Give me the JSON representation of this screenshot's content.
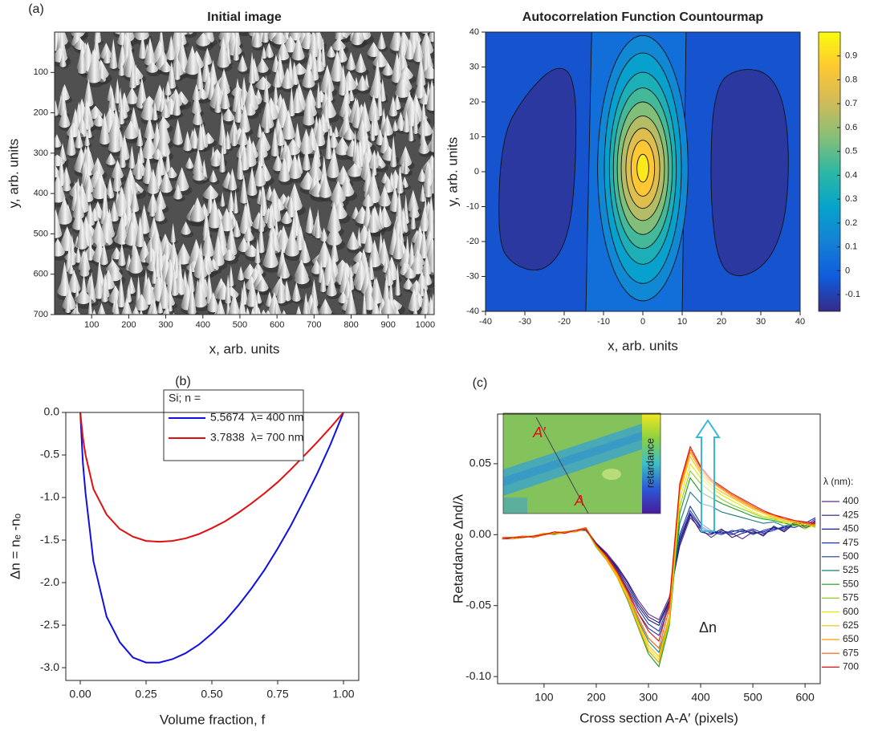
{
  "chart_data": [
    {
      "type": "image",
      "panel_label": "(a)",
      "title": "Initial image",
      "xlabel": "x, arb. units",
      "ylabel": "y, arb. units",
      "xlim": [
        0,
        1024
      ],
      "ylim": [
        700,
        0
      ],
      "xticks": [
        100,
        200,
        300,
        400,
        500,
        600,
        700,
        800,
        900,
        1000
      ],
      "yticks": [
        100,
        200,
        300,
        400,
        500,
        600,
        700
      ]
    },
    {
      "type": "contour",
      "title": "Autocorrelation Function Countourmap",
      "xlabel": "x, arb. units",
      "ylabel": "y, arb. units",
      "xlim": [
        -40,
        40
      ],
      "ylim": [
        -40,
        40
      ],
      "xticks": [
        -40,
        -30,
        -20,
        -10,
        0,
        10,
        20,
        30,
        40
      ],
      "yticks": [
        -40,
        -30,
        -20,
        -10,
        0,
        10,
        20,
        30,
        40
      ],
      "colorbar": {
        "lim": [
          -0.17,
          1.0
        ],
        "ticks": [
          -0.1,
          0,
          0.1,
          0.2,
          0.3,
          0.4,
          0.5,
          0.6,
          0.7,
          0.8,
          0.9
        ]
      },
      "colormap": [
        "#352a87",
        "#0f5cdd",
        "#1481d6",
        "#06a4ca",
        "#2eb7a4",
        "#87bf77",
        "#d1bb59",
        "#fec832",
        "#f9fb0e"
      ]
    },
    {
      "type": "line",
      "panel_label": "(b)",
      "xlabel": "Volume fraction, f",
      "ylabel": "Δn = nₑ -nₒ",
      "xlim": [
        -0.055,
        1.058
      ],
      "ylim": [
        -3.15,
        0
      ],
      "xticks": [
        {
          "value": 0,
          "label": "0.00"
        },
        {
          "value": 0.25,
          "label": "0.25"
        },
        {
          "value": 0.5,
          "label": "0.50"
        },
        {
          "value": 0.75,
          "label": "0.75"
        },
        {
          "value": 1,
          "label": "1.00"
        }
      ],
      "yticks": [
        {
          "value": 0,
          "label": "0.0"
        },
        {
          "value": -0.5,
          "label": "-0.5"
        },
        {
          "value": -1,
          "label": "-1.0"
        },
        {
          "value": -1.5,
          "label": "-1.5"
        },
        {
          "value": -2,
          "label": "-2.0"
        },
        {
          "value": -2.5,
          "label": "-2.5"
        },
        {
          "value": -3,
          "label": "-3.0"
        }
      ],
      "legend": "upper center",
      "legend_title": "Si; n =",
      "x": [
        0,
        0.01,
        0.02,
        0.05,
        0.1,
        0.15,
        0.2,
        0.25,
        0.3,
        0.35,
        0.4,
        0.45,
        0.5,
        0.55,
        0.6,
        0.65,
        0.7,
        0.75,
        0.8,
        0.85,
        0.9,
        0.95,
        1
      ],
      "series": [
        {
          "name": "5.5674  λ= 400 nm",
          "color": "#1010e0",
          "values": [
            0,
            -0.6,
            -0.95,
            -1.75,
            -2.4,
            -2.7,
            -2.88,
            -2.94,
            -2.94,
            -2.9,
            -2.83,
            -2.73,
            -2.6,
            -2.45,
            -2.27,
            -2.07,
            -1.85,
            -1.6,
            -1.33,
            -1.03,
            -0.72,
            -0.38,
            0
          ]
        },
        {
          "name": "3.7838  λ= 700 nm",
          "color": "#e01010",
          "values": [
            0,
            -0.3,
            -0.5,
            -0.9,
            -1.2,
            -1.37,
            -1.46,
            -1.51,
            -1.52,
            -1.51,
            -1.48,
            -1.43,
            -1.36,
            -1.28,
            -1.18,
            -1.07,
            -0.95,
            -0.82,
            -0.67,
            -0.51,
            -0.35,
            -0.18,
            0
          ]
        }
      ]
    },
    {
      "type": "line",
      "panel_label": "(c)",
      "xlabel": "Cross section A-A′ (pixels)",
      "ylabel": "Retardance Δnd/λ",
      "xlim": [
        11,
        629
      ],
      "ylim": [
        -0.105,
        0.085
      ],
      "xticks": [
        100,
        200,
        300,
        400,
        500,
        600
      ],
      "yticks": [
        {
          "value": 0.05,
          "label": "0.05"
        },
        {
          "value": 0,
          "label": "0.00"
        },
        {
          "value": -0.05,
          "label": "-0.05"
        },
        {
          "value": -0.1,
          "label": "-0.10"
        }
      ],
      "legend": "right",
      "legend_title": "λ (nm):",
      "annotation": "Δn",
      "inset": {
        "labels": [
          "A′",
          "A"
        ],
        "colorbar_label": "retardance"
      },
      "x": [
        20,
        40,
        60,
        80,
        100,
        120,
        140,
        160,
        180,
        200,
        220,
        240,
        260,
        280,
        300,
        320,
        340,
        360,
        380,
        400,
        420,
        440,
        460,
        480,
        500,
        520,
        540,
        560,
        580,
        600,
        620
      ],
      "series": [
        {
          "name": "400",
          "color": "#5a2d91",
          "values": [
            -0.002,
            -0.003,
            -0.001,
            -0.002,
            0.0,
            0.001,
            0.002,
            0.002,
            0.004,
            -0.006,
            -0.013,
            -0.022,
            -0.033,
            -0.046,
            -0.056,
            -0.06,
            -0.044,
            -0.008,
            0.012,
            0.004,
            -0.002,
            0.003,
            0.001,
            -0.003,
            0.002,
            0.0,
            0.005,
            0.003,
            0.009,
            0.006,
            0.011
          ]
        },
        {
          "name": "425",
          "color": "#2a1a70",
          "values": [
            -0.003,
            -0.002,
            -0.002,
            -0.001,
            0.001,
            0.0,
            0.002,
            0.003,
            0.003,
            -0.007,
            -0.014,
            -0.023,
            -0.034,
            -0.048,
            -0.058,
            -0.062,
            -0.046,
            -0.006,
            0.014,
            0.002,
            0.0,
            0.004,
            -0.002,
            0.001,
            0.003,
            -0.001,
            0.006,
            0.002,
            0.008,
            0.004,
            0.01
          ]
        },
        {
          "name": "450",
          "color": "#1c1c8c",
          "values": [
            -0.002,
            -0.002,
            -0.001,
            -0.002,
            0.0,
            0.001,
            0.001,
            0.003,
            0.004,
            -0.006,
            -0.014,
            -0.024,
            -0.036,
            -0.05,
            -0.06,
            -0.064,
            -0.047,
            -0.004,
            0.015,
            0.005,
            0.001,
            0.002,
            0.0,
            0.003,
            0.001,
            0.002,
            0.004,
            0.005,
            0.007,
            0.009,
            0.008
          ]
        },
        {
          "name": "475",
          "color": "#1f35b5",
          "values": [
            -0.003,
            -0.003,
            -0.002,
            -0.001,
            0.0,
            0.001,
            0.002,
            0.002,
            0.004,
            -0.007,
            -0.015,
            -0.025,
            -0.038,
            -0.052,
            -0.063,
            -0.068,
            -0.048,
            -0.002,
            0.017,
            0.006,
            0.002,
            0.0,
            0.003,
            0.002,
            0.004,
            0.001,
            0.003,
            0.006,
            0.005,
            0.008,
            0.012
          ]
        },
        {
          "name": "500",
          "color": "#1a3aa0",
          "values": [
            -0.002,
            -0.002,
            -0.002,
            -0.001,
            0.001,
            0.0,
            0.002,
            0.003,
            0.004,
            -0.008,
            -0.016,
            -0.026,
            -0.04,
            -0.055,
            -0.066,
            -0.071,
            -0.05,
            0.0,
            0.02,
            0.008,
            0.003,
            0.001,
            0.002,
            0.004,
            0.0,
            0.003,
            0.005,
            0.004,
            0.007,
            0.006,
            0.009
          ]
        },
        {
          "name": "525",
          "color": "#1a7a7a",
          "values": [
            -0.002,
            -0.003,
            -0.001,
            -0.002,
            0.0,
            0.002,
            0.001,
            0.003,
            0.005,
            -0.008,
            -0.017,
            -0.028,
            -0.043,
            -0.06,
            -0.075,
            -0.083,
            -0.058,
            0.008,
            0.03,
            0.022,
            0.02,
            0.016,
            0.014,
            0.012,
            0.01,
            0.008,
            0.009,
            0.006,
            0.008,
            0.005,
            0.007
          ]
        },
        {
          "name": "550",
          "color": "#1a9a1a",
          "values": [
            -0.003,
            -0.002,
            -0.002,
            -0.001,
            0.0,
            0.001,
            0.002,
            0.002,
            0.004,
            -0.009,
            -0.018,
            -0.03,
            -0.046,
            -0.065,
            -0.084,
            -0.093,
            -0.064,
            0.015,
            0.04,
            0.03,
            0.026,
            0.022,
            0.019,
            0.016,
            0.013,
            0.011,
            0.01,
            0.008,
            0.007,
            0.006,
            0.008
          ]
        },
        {
          "name": "575",
          "color": "#8cd020",
          "values": [
            -0.002,
            -0.003,
            -0.001,
            -0.001,
            0.001,
            0.0,
            0.002,
            0.003,
            0.004,
            -0.009,
            -0.018,
            -0.03,
            -0.045,
            -0.064,
            -0.082,
            -0.09,
            -0.062,
            0.02,
            0.045,
            0.036,
            0.03,
            0.025,
            0.021,
            0.018,
            0.015,
            0.012,
            0.011,
            0.009,
            0.006,
            0.008,
            0.005
          ]
        },
        {
          "name": "600",
          "color": "#e8e800",
          "values": [
            -0.002,
            -0.002,
            -0.002,
            -0.001,
            0.0,
            0.001,
            0.001,
            0.003,
            0.005,
            -0.008,
            -0.017,
            -0.029,
            -0.044,
            -0.062,
            -0.08,
            -0.088,
            -0.06,
            0.025,
            0.05,
            0.04,
            0.033,
            0.028,
            0.024,
            0.02,
            0.016,
            0.013,
            0.012,
            0.008,
            0.01,
            0.004,
            0.007
          ]
        },
        {
          "name": "625",
          "color": "#f2c200",
          "values": [
            -0.003,
            -0.002,
            -0.001,
            -0.002,
            0.0,
            0.002,
            0.002,
            0.003,
            0.004,
            -0.008,
            -0.017,
            -0.028,
            -0.043,
            -0.061,
            -0.078,
            -0.086,
            -0.057,
            0.03,
            0.055,
            0.043,
            0.035,
            0.03,
            0.026,
            0.022,
            0.018,
            0.015,
            0.012,
            0.01,
            0.008,
            0.007,
            0.006
          ]
        },
        {
          "name": "650",
          "color": "#ff9a00",
          "values": [
            -0.002,
            -0.003,
            -0.002,
            -0.001,
            0.001,
            0.001,
            0.002,
            0.002,
            0.004,
            -0.008,
            -0.018,
            -0.03,
            -0.045,
            -0.064,
            -0.082,
            -0.09,
            -0.058,
            0.032,
            0.058,
            0.045,
            0.037,
            0.032,
            0.027,
            0.023,
            0.019,
            0.016,
            0.013,
            0.011,
            0.009,
            0.008,
            0.006
          ]
        },
        {
          "name": "675",
          "color": "#ff5a00",
          "values": [
            -0.002,
            -0.002,
            -0.001,
            -0.002,
            0.0,
            0.001,
            0.002,
            0.003,
            0.005,
            -0.007,
            -0.016,
            -0.027,
            -0.041,
            -0.058,
            -0.073,
            -0.08,
            -0.052,
            0.034,
            0.06,
            0.047,
            0.038,
            0.033,
            0.028,
            0.024,
            0.02,
            0.016,
            0.014,
            0.011,
            0.01,
            0.008,
            0.007
          ]
        },
        {
          "name": "700",
          "color": "#e01010",
          "values": [
            -0.003,
            -0.002,
            -0.002,
            -0.001,
            0.0,
            0.002,
            0.001,
            0.003,
            0.004,
            -0.007,
            -0.015,
            -0.026,
            -0.039,
            -0.055,
            -0.068,
            -0.075,
            -0.048,
            0.036,
            0.062,
            0.048,
            0.039,
            0.034,
            0.029,
            0.025,
            0.021,
            0.017,
            0.014,
            0.012,
            0.01,
            0.009,
            0.008
          ]
        }
      ]
    }
  ]
}
